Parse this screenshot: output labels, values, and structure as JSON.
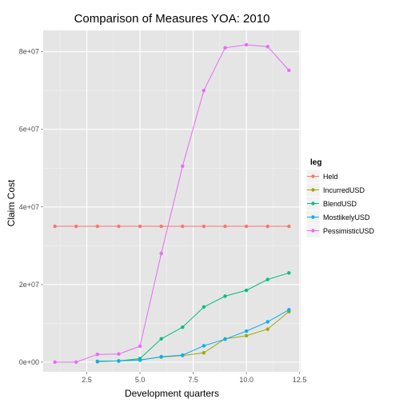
{
  "chart_data": {
    "type": "line",
    "title": "Comparison of Measures  YOA: 2010",
    "xlabel": "Development quarters",
    "ylabel": "Claim Cost",
    "xlim": [
      0.45,
      12.55
    ],
    "ylim": [
      -2500000,
      85500000
    ],
    "x_ticks": [
      2.5,
      5.0,
      7.5,
      10.0,
      12.5
    ],
    "x_tick_labels": [
      "2.5",
      "5.0",
      "7.5",
      "10.0",
      "12.5"
    ],
    "y_ticks": [
      0,
      20000000,
      40000000,
      60000000,
      80000000
    ],
    "y_tick_labels": [
      "0e+00",
      "2e+07",
      "4e+07",
      "6e+07",
      "8e+07"
    ],
    "grid": true,
    "legend_position": "right",
    "legend_title": "leg",
    "series": [
      {
        "name": "Held",
        "color": "#F8766D",
        "x": [
          1,
          2,
          3,
          4,
          5,
          6,
          7,
          8,
          9,
          10,
          11,
          12
        ],
        "values": [
          35000000,
          35000000,
          35000000,
          35000000,
          35000000,
          35000000,
          35000000,
          35000000,
          35000000,
          35000000,
          35000000,
          35000000
        ]
      },
      {
        "name": "IncurredUSD",
        "color": "#A3A500",
        "x": [
          3,
          4,
          5,
          6,
          7,
          8,
          9,
          10,
          11,
          12
        ],
        "values": [
          100000,
          300000,
          600000,
          1300000,
          1700000,
          2400000,
          6000000,
          6800000,
          8500000,
          13000000
        ]
      },
      {
        "name": "BlendUSD",
        "color": "#00BF7D",
        "x": [
          3,
          4,
          5,
          6,
          7,
          8,
          9,
          10,
          11,
          12
        ],
        "values": [
          200000,
          300000,
          900000,
          6000000,
          9000000,
          14200000,
          17000000,
          18500000,
          21300000,
          23000000
        ]
      },
      {
        "name": "MostlikelyUSD",
        "color": "#00B0F6",
        "x": [
          3,
          4,
          5,
          6,
          7,
          8,
          9,
          10,
          11,
          12
        ],
        "values": [
          200000,
          300000,
          500000,
          1400000,
          1800000,
          4200000,
          5900000,
          8000000,
          10400000,
          13500000
        ]
      },
      {
        "name": "PessimisticUSD",
        "color": "#E76BF3",
        "x": [
          1,
          2,
          3,
          4,
          5,
          6,
          7,
          8,
          9,
          10,
          11,
          12
        ],
        "values": [
          0,
          0,
          2000000,
          2100000,
          4100000,
          28000000,
          50500000,
          70000000,
          81000000,
          81800000,
          81300000,
          75200000
        ]
      }
    ]
  }
}
